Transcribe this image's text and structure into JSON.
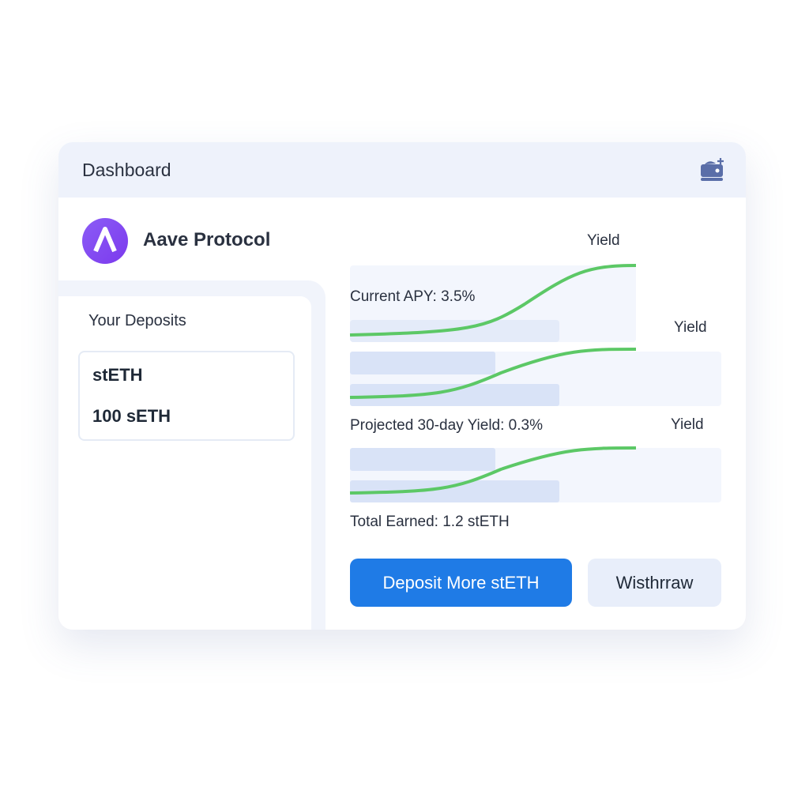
{
  "header": {
    "title": "Dashboard",
    "wallet_icon": "wallet-add-icon"
  },
  "protocol": {
    "name": "Aave Protocol",
    "logo_color": "#7c3aed"
  },
  "deposits": {
    "heading": "Your Deposits",
    "asset": "stETH",
    "amount": "100 sETH"
  },
  "stats": {
    "apy": "Current APY: 3.5%",
    "projected": "Projected 30-day Yield: 0.3%",
    "earned": "Total Earned: 1.2 stETH"
  },
  "charts": [
    {
      "label": "Yield"
    },
    {
      "label": "Yield"
    },
    {
      "label": "Yield"
    }
  ],
  "colors": {
    "accent": "#1f7be6",
    "curve": "#5cc866"
  },
  "buttons": {
    "deposit": "Deposit More stETH",
    "withdraw": "Wisthrraw"
  }
}
